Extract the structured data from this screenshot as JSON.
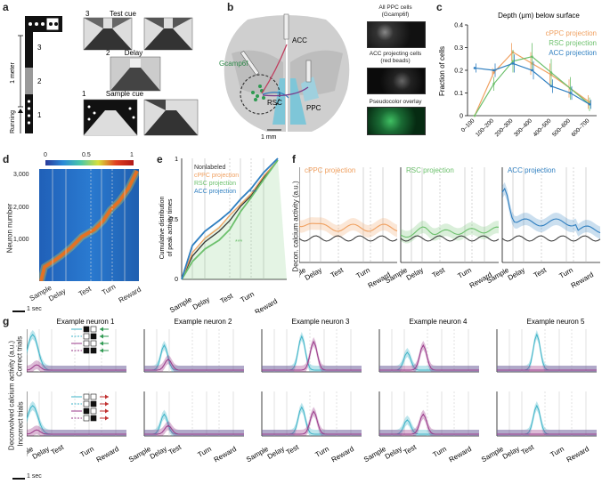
{
  "panels": {
    "a": {
      "label": "a",
      "meter": "1 meter",
      "running": "Running",
      "stage_nums": [
        "3",
        "2",
        "1"
      ],
      "scene_nums": [
        "3",
        "2",
        "1"
      ],
      "titles": [
        "Test cue",
        "Delay",
        "Sample cue"
      ]
    },
    "b": {
      "label": "b",
      "gcamp": "Gcamp6f",
      "acc": "ACC",
      "rsc": "RSC",
      "ppc": "PPC",
      "scale": "1 mm",
      "img_titles": [
        "All PPC cells\n(Gcamp6f)",
        "ACC projecting cells\n(red beads)",
        "Pseudocolor overlay"
      ]
    },
    "c": {
      "label": "c",
      "title": "Depth (μm) below surface",
      "ylabel": "Fraction of cells",
      "legend": [
        "cPPC projection",
        "RSC projection",
        "ACC projection"
      ]
    },
    "d": {
      "label": "d",
      "ylabel": "Neuron number",
      "cb_ticks": [
        "0",
        "0.5",
        "1"
      ],
      "yticks": [
        "3,000",
        "2,000",
        "1,000"
      ],
      "xticks": [
        "Sample",
        "Delay",
        "Test",
        "Turn",
        "Reward"
      ],
      "scale": "1 sec"
    },
    "e": {
      "label": "e",
      "ylabel": "Cumulative distribution\nof peak activity times",
      "legend": [
        "Nonlabeled",
        "cPPC projection",
        "RSC projection",
        "ACC projection"
      ],
      "stars": "***",
      "yticks": [
        "1",
        "0.5",
        "0"
      ],
      "xticks": [
        "Sample",
        "Delay",
        "Test",
        "Turn",
        "Reward"
      ]
    },
    "f": {
      "label": "f",
      "ylabel": "Decon. calcium activity (a.u.)",
      "titles": [
        "cPPC projection",
        "RSC projection",
        "ACC projection"
      ],
      "xticks": [
        "Sample",
        "Delay",
        "Test",
        "Turn",
        "Reward"
      ]
    },
    "g": {
      "label": "g",
      "ylabel": "Deconvolved calcium activity (a.u.)",
      "row_labels": [
        "Correct trials",
        "Incorrect trials"
      ],
      "titles": [
        "Example neuron 1",
        "Example neuron 2",
        "Example neuron 3",
        "Example neuron 4",
        "Example neuron 5"
      ],
      "xticks": [
        "Sample",
        "Delay",
        "Test",
        "Turn",
        "Reward"
      ],
      "scale": "1 sec"
    }
  },
  "chart_data": [
    {
      "type": "line",
      "panel": "c",
      "title": "Depth (μm) below surface",
      "ylabel": "Fraction of cells",
      "categories": [
        "0–100",
        "100–200",
        "200–300",
        "300–400",
        "400–500",
        "500–600",
        "600–700"
      ],
      "ylim": [
        0,
        0.4
      ],
      "yticks": [
        0,
        0.1,
        0.2,
        0.3,
        0.4
      ],
      "series": [
        {
          "name": "cPPC projection",
          "color": "#f0a060",
          "values": [
            0.0,
            0.19,
            0.28,
            0.23,
            0.18,
            0.12,
            0.06
          ],
          "err": [
            0,
            0.02,
            0.04,
            0.05,
            0.05,
            0.04,
            0.03
          ]
        },
        {
          "name": "RSC projection",
          "color": "#6cc06c",
          "values": [
            0.0,
            0.14,
            0.24,
            0.26,
            0.19,
            0.12,
            0.05
          ],
          "err": [
            0,
            0.03,
            0.05,
            0.06,
            0.06,
            0.05,
            0.03
          ]
        },
        {
          "name": "ACC projection",
          "color": "#2f7fc0",
          "values": [
            0.21,
            0.2,
            0.23,
            0.2,
            0.13,
            0.1,
            0.05
          ],
          "err": [
            0.02,
            0.03,
            0.04,
            0.04,
            0.03,
            0.03,
            0.02
          ]
        }
      ]
    },
    {
      "type": "line",
      "panel": "e",
      "ylabel": "Cumulative distribution of peak activity times",
      "ylim": [
        0,
        1
      ],
      "yticks": [
        0,
        0.5,
        1
      ],
      "series": [
        {
          "name": "Nonlabeled",
          "color": "#333333"
        },
        {
          "name": "cPPC projection",
          "color": "#f0a060"
        },
        {
          "name": "RSC projection",
          "color": "#6cc06c"
        },
        {
          "name": "ACC projection",
          "color": "#2f7fc0"
        }
      ]
    }
  ]
}
